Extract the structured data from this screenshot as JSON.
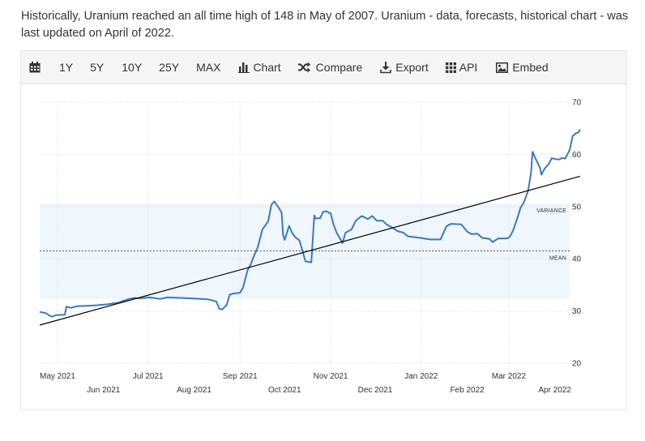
{
  "intro_text": "Historically, Uranium reached an all time high of 148 in May of 2007. Uranium - data, forecasts, historical chart - was last updated on April of 2022.",
  "toolbar": {
    "calendar_icon": "calendar-icon",
    "ranges": [
      "1Y",
      "5Y",
      "10Y",
      "25Y",
      "MAX"
    ],
    "chart_label": "Chart",
    "compare_label": "Compare",
    "export_label": "Export",
    "api_label": "API",
    "embed_label": "Embed"
  },
  "colors": {
    "line": "#3b7ab8",
    "trend": "#000000",
    "band": "#eff6fc",
    "grid": "#d9d9d9"
  },
  "chart_data": {
    "type": "line",
    "y_ticks": [
      20,
      30,
      40,
      50,
      60,
      70
    ],
    "ylim": [
      20,
      70
    ],
    "grid": true,
    "x_ticks_top": [
      "May 2021",
      "Jul 2021",
      "Sep 2021",
      "Nov 2021",
      "Jan 2022",
      "Mar 2022"
    ],
    "x_ticks_bottom": [
      "Jun 2021",
      "Aug 2021",
      "Oct 2021",
      "Dec 2021",
      "Feb 2022",
      "Apr 2022"
    ],
    "x_start": "2021-04-19",
    "x_end": "2022-04-11",
    "bands": [
      {
        "label": "VARIANCE",
        "from": 32.3,
        "to": 50.6
      },
      {
        "label": "MEAN",
        "value": 41.5
      }
    ],
    "trend": {
      "from": [
        "2021-04-19",
        27.3
      ],
      "to": [
        "2022-04-18",
        55.8
      ]
    },
    "series": [
      {
        "points": [
          [
            "2021-04-19",
            29.8
          ],
          [
            "2021-04-23",
            29.6
          ],
          [
            "2021-04-27",
            28.9
          ],
          [
            "2021-04-30",
            29.2
          ],
          [
            "2021-05-06",
            29.3
          ],
          [
            "2021-05-07",
            30.8
          ],
          [
            "2021-05-10",
            30.6
          ],
          [
            "2021-05-14",
            30.9
          ],
          [
            "2021-05-21",
            31.0
          ],
          [
            "2021-05-28",
            31.1
          ],
          [
            "2021-06-04",
            31.3
          ],
          [
            "2021-06-11",
            31.6
          ],
          [
            "2021-06-15",
            32.0
          ],
          [
            "2021-06-18",
            32.3
          ],
          [
            "2021-06-22",
            32.5
          ],
          [
            "2021-06-25",
            32.4
          ],
          [
            "2021-07-02",
            32.6
          ],
          [
            "2021-07-09",
            32.3
          ],
          [
            "2021-07-14",
            32.6
          ],
          [
            "2021-07-23",
            32.5
          ],
          [
            "2021-07-30",
            32.4
          ],
          [
            "2021-08-06",
            32.3
          ],
          [
            "2021-08-11",
            32.2
          ],
          [
            "2021-08-16",
            31.8
          ],
          [
            "2021-08-18",
            30.4
          ],
          [
            "2021-08-20",
            30.3
          ],
          [
            "2021-08-23",
            31.2
          ],
          [
            "2021-08-25",
            33.1
          ],
          [
            "2021-08-27",
            33.3
          ],
          [
            "2021-09-01",
            33.5
          ],
          [
            "2021-09-03",
            34.5
          ],
          [
            "2021-09-06",
            37.8
          ],
          [
            "2021-09-08",
            38.8
          ],
          [
            "2021-09-10",
            40.3
          ],
          [
            "2021-09-13",
            42.3
          ],
          [
            "2021-09-16",
            45.6
          ],
          [
            "2021-09-20",
            47.2
          ],
          [
            "2021-09-22",
            50.3
          ],
          [
            "2021-09-24",
            51.0
          ],
          [
            "2021-09-27",
            49.8
          ],
          [
            "2021-09-29",
            48.8
          ],
          [
            "2021-09-30",
            44.5
          ],
          [
            "2021-10-01",
            43.6
          ],
          [
            "2021-10-04",
            46.3
          ],
          [
            "2021-10-06",
            45.0
          ],
          [
            "2021-10-08",
            44.2
          ],
          [
            "2021-10-11",
            43.5
          ],
          [
            "2021-10-13",
            41.5
          ],
          [
            "2021-10-15",
            39.5
          ],
          [
            "2021-10-19",
            39.3
          ],
          [
            "2021-10-21",
            48.3
          ],
          [
            "2021-10-22",
            47.7
          ],
          [
            "2021-10-25",
            47.8
          ],
          [
            "2021-10-27",
            49.0
          ],
          [
            "2021-10-29",
            49.1
          ],
          [
            "2021-11-01",
            48.7
          ],
          [
            "2021-11-03",
            46.5
          ],
          [
            "2021-11-05",
            45.0
          ],
          [
            "2021-11-09",
            43.0
          ],
          [
            "2021-11-11",
            45.0
          ],
          [
            "2021-11-15",
            45.6
          ],
          [
            "2021-11-18",
            47.3
          ],
          [
            "2021-11-22",
            48.2
          ],
          [
            "2021-11-26",
            47.6
          ],
          [
            "2021-11-29",
            48.2
          ],
          [
            "2021-12-02",
            47.3
          ],
          [
            "2021-12-06",
            47.3
          ],
          [
            "2021-12-09",
            46.5
          ],
          [
            "2021-12-13",
            45.9
          ],
          [
            "2021-12-16",
            45.3
          ],
          [
            "2021-12-20",
            45.0
          ],
          [
            "2021-12-23",
            44.3
          ],
          [
            "2021-12-31",
            44.0
          ],
          [
            "2022-01-07",
            43.7
          ],
          [
            "2022-01-14",
            43.7
          ],
          [
            "2022-01-18",
            46.2
          ],
          [
            "2022-01-21",
            46.7
          ],
          [
            "2022-01-28",
            46.6
          ],
          [
            "2022-02-01",
            45.2
          ],
          [
            "2022-02-04",
            44.7
          ],
          [
            "2022-02-08",
            44.8
          ],
          [
            "2022-02-11",
            44.0
          ],
          [
            "2022-02-16",
            43.8
          ],
          [
            "2022-02-18",
            43.2
          ],
          [
            "2022-02-22",
            43.9
          ],
          [
            "2022-02-28",
            43.9
          ],
          [
            "2022-03-02",
            44.3
          ],
          [
            "2022-03-04",
            45.5
          ],
          [
            "2022-03-07",
            48.0
          ],
          [
            "2022-03-09",
            49.8
          ],
          [
            "2022-03-11",
            50.7
          ],
          [
            "2022-03-14",
            53.0
          ],
          [
            "2022-03-16",
            56.5
          ],
          [
            "2022-03-17",
            60.5
          ],
          [
            "2022-03-19",
            59.2
          ],
          [
            "2022-03-22",
            57.4
          ],
          [
            "2022-03-23",
            56.1
          ],
          [
            "2022-03-25",
            57.2
          ],
          [
            "2022-03-28",
            58.2
          ],
          [
            "2022-03-30",
            59.3
          ],
          [
            "2022-04-01",
            59.1
          ],
          [
            "2022-04-04",
            59.0
          ],
          [
            "2022-04-06",
            59.3
          ],
          [
            "2022-04-08",
            59.2
          ],
          [
            "2022-04-11",
            60.8
          ],
          [
            "2022-04-13",
            63.5
          ],
          [
            "2022-04-15",
            64.0
          ],
          [
            "2022-04-17",
            64.2
          ],
          [
            "2022-04-18",
            64.8
          ]
        ]
      }
    ]
  }
}
